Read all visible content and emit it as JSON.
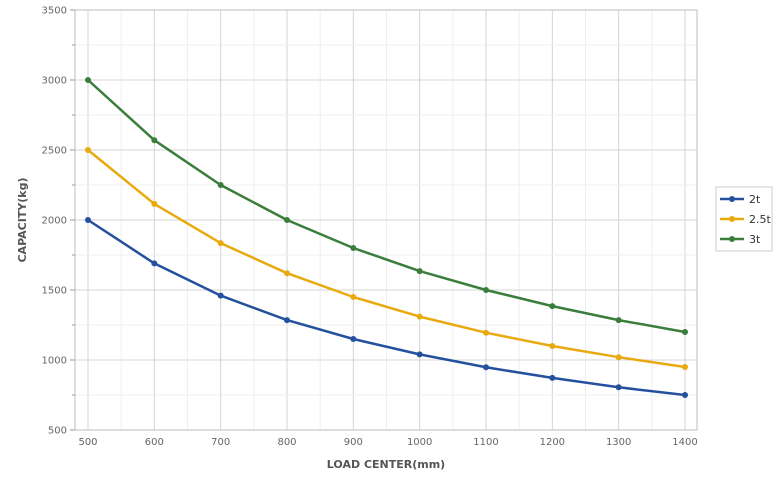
{
  "chart_data": {
    "type": "line",
    "title": "",
    "xlabel": "LOAD CENTER(mm)",
    "ylabel": "CAPACITY(kg)",
    "x": [
      500,
      600,
      700,
      800,
      900,
      1000,
      1100,
      1200,
      1300,
      1400
    ],
    "xlim": [
      500,
      1400
    ],
    "ylim": [
      500,
      3500
    ],
    "xticks": [
      500,
      600,
      700,
      800,
      900,
      1000,
      1100,
      1200,
      1300,
      1400
    ],
    "yticks": [
      500,
      1000,
      1500,
      2000,
      2500,
      3000,
      3500
    ],
    "grid": true,
    "legend": "right",
    "series": [
      {
        "name": "2t",
        "color": "#24509e",
        "values": [
          2000,
          1690,
          1460,
          1285,
          1150,
          1040,
          948,
          872,
          805,
          750
        ]
      },
      {
        "name": "2.5t",
        "color": "#e8aa0e",
        "values": [
          2500,
          2115,
          1835,
          1620,
          1450,
          1310,
          1195,
          1100,
          1020,
          950
        ]
      },
      {
        "name": "3t",
        "color": "#3b7d3b",
        "values": [
          3000,
          2570,
          2250,
          2000,
          1800,
          1635,
          1500,
          1385,
          1285,
          1200
        ]
      }
    ]
  }
}
